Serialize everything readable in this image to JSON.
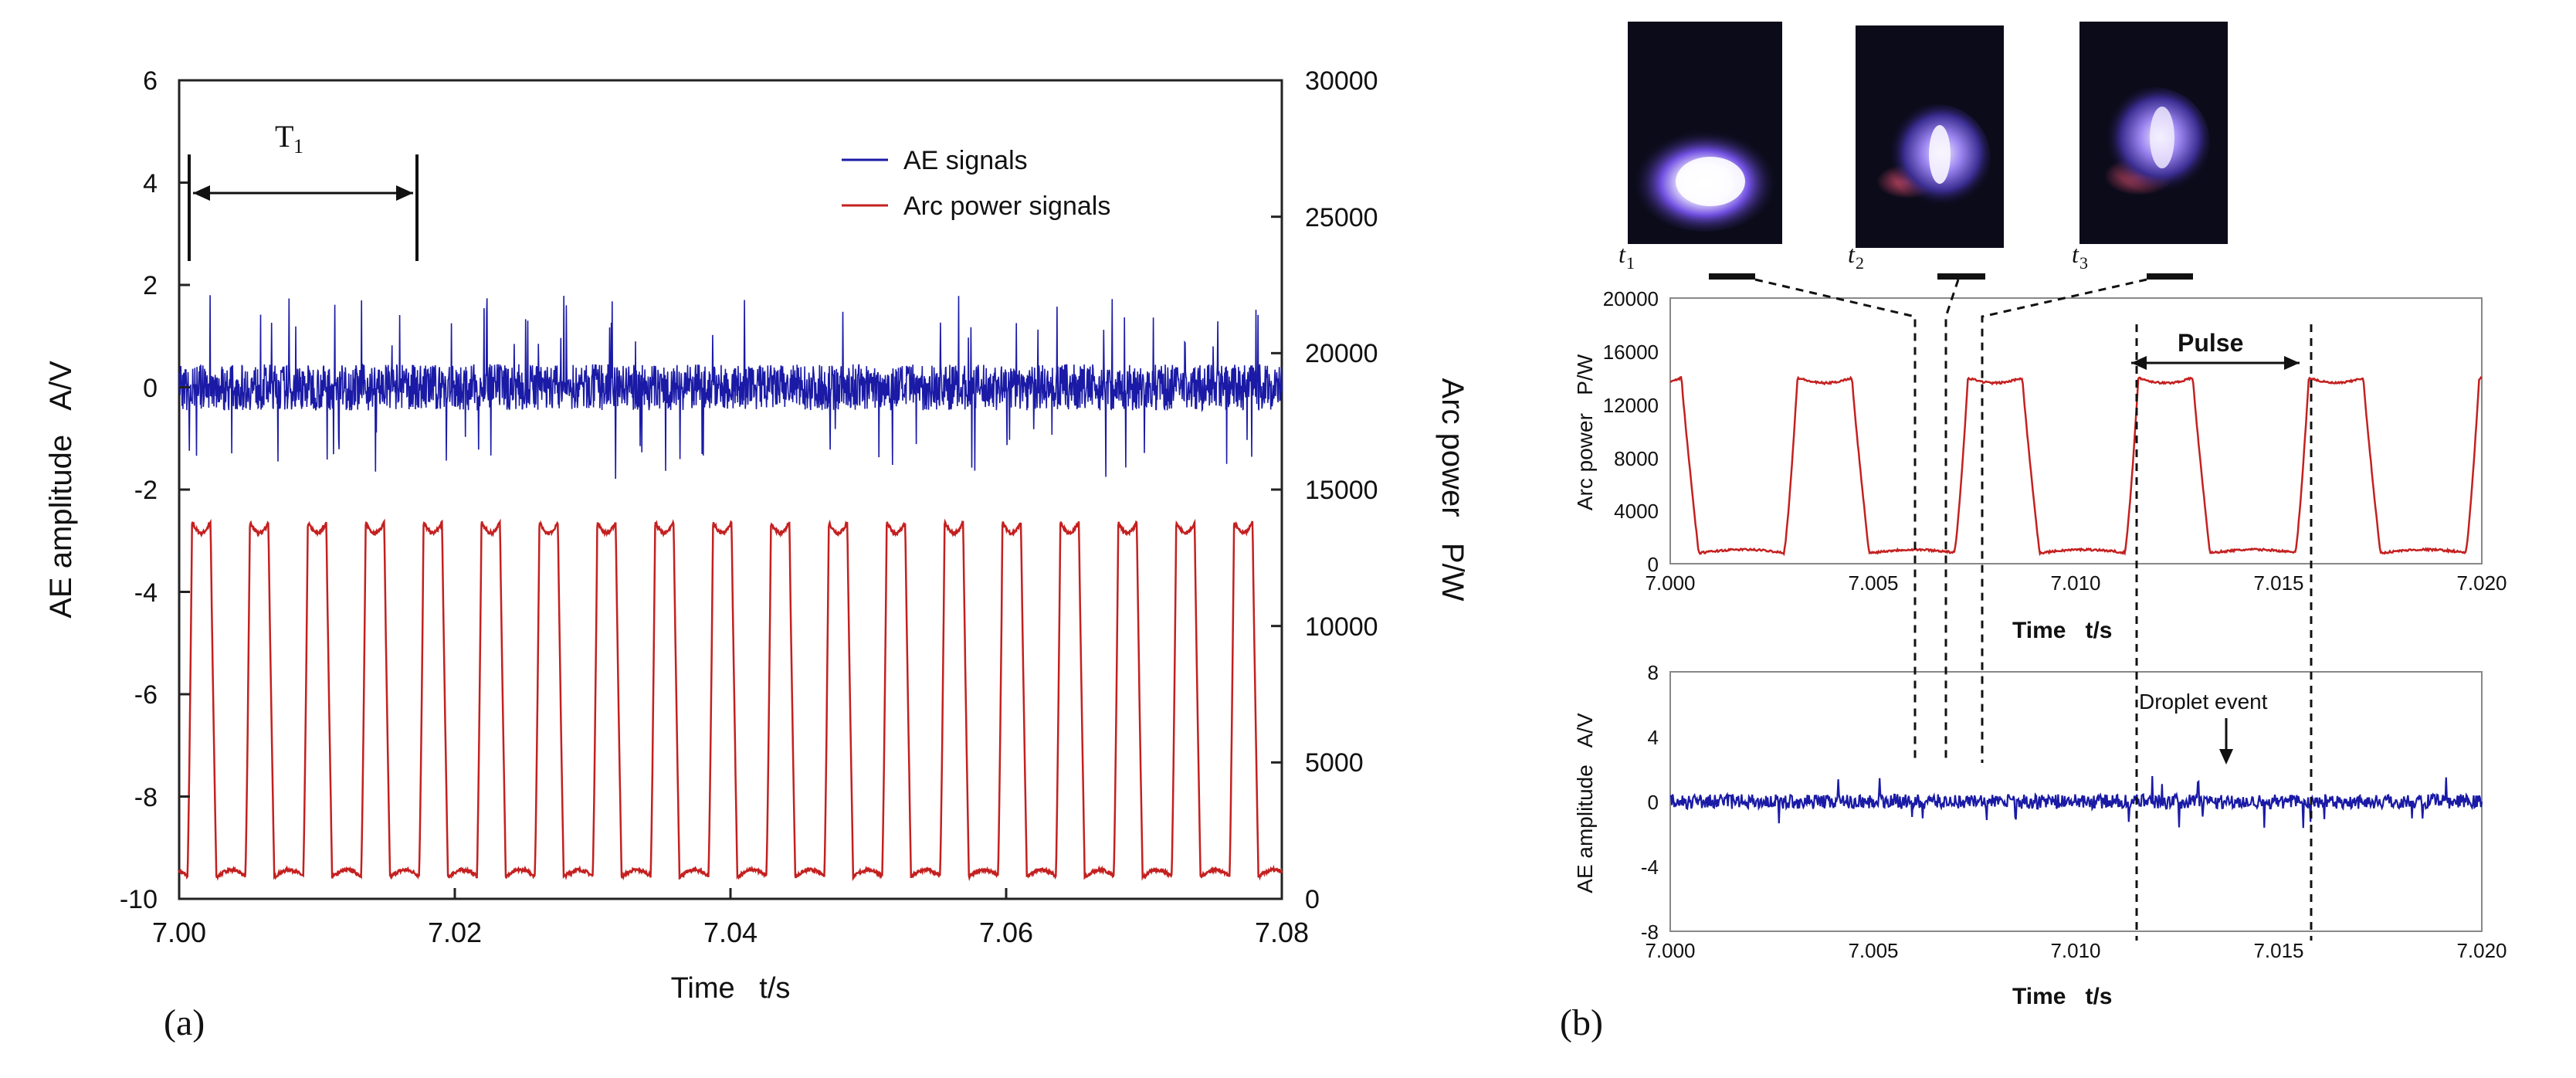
{
  "panel_a": {
    "panel_label": "(a)",
    "period_label": "T",
    "period_sub": "1",
    "chart_data": {
      "type": "line",
      "xlabel": "Time   t/s",
      "ylabel_left": "AE amplitude   A/V",
      "ylabel_right": "Arc power   P/W",
      "xlim": [
        7.0,
        7.08
      ],
      "ylim_left": [
        -10,
        6
      ],
      "ylim_right": [
        0,
        30000
      ],
      "x_ticks": [
        "7.00",
        "7.02",
        "7.04",
        "7.06",
        "7.08"
      ],
      "y_left_ticks": [
        "6",
        "4",
        "2",
        "0",
        "-2",
        "-4",
        "-6",
        "-8",
        "-10"
      ],
      "y_right_ticks": [
        "30000",
        "25000",
        "20000",
        "15000",
        "10000",
        "5000",
        "0"
      ],
      "legend_position": "top-right",
      "series": [
        {
          "name": "AE signals",
          "color": "#1a1aa6",
          "axis": "left",
          "description_values": {
            "baseline": 0,
            "noise_band": [
              -0.5,
              0.5
            ],
            "spike_max": 1.7,
            "spike_min": -1.9
          }
        },
        {
          "name": "Arc power signals",
          "color": "#c42020",
          "axis": "right",
          "pulse_period_s": 0.0042,
          "high": 13800,
          "low": 800
        }
      ],
      "annotations": [
        {
          "type": "period-marker",
          "label": "T1",
          "x_start": 7.0015,
          "x_end": 7.018,
          "y": 4
        }
      ]
    }
  },
  "panel_b": {
    "panel_label": "(b)",
    "photo_labels": [
      "t1",
      "t2",
      "t3"
    ],
    "photo_label_base": "t",
    "photo_subs": [
      "1",
      "2",
      "3"
    ],
    "pulse_label": "Pulse",
    "droplet_label": "Droplet event",
    "chart_data": [
      {
        "type": "line",
        "xlabel": "Time   t/s",
        "ylabel": "Arc power   P/W",
        "xlim": [
          7.0,
          7.02
        ],
        "ylim": [
          0,
          20000
        ],
        "x_ticks": [
          "7.000",
          "7.005",
          "7.010",
          "7.015",
          "7.020"
        ],
        "y_ticks": [
          "20000",
          "16000",
          "12000",
          "8000",
          "4000",
          "0"
        ],
        "series": [
          {
            "color": "#c42020",
            "pulse_period_s": 0.0042,
            "high": 14000,
            "low": 800
          }
        ],
        "markers": {
          "pulse_start": 7.0115,
          "pulse_end": 7.016,
          "photo_lines": [
            7.0064,
            7.0071,
            7.0081
          ]
        }
      },
      {
        "type": "line",
        "xlabel": "Time   t/s",
        "ylabel": "AE amplitude   A/V",
        "xlim": [
          7.0,
          7.02
        ],
        "ylim": [
          -8,
          8
        ],
        "x_ticks": [
          "7.000",
          "7.005",
          "7.010",
          "7.015",
          "7.020"
        ],
        "y_ticks": [
          "8",
          "4",
          "0",
          "-4",
          "-8"
        ],
        "series": [
          {
            "color": "#1a1aa6",
            "baseline": 0,
            "noise_band": [
              -0.5,
              0.6
            ]
          }
        ],
        "annotations": [
          {
            "label": "Droplet event",
            "x": 7.0137
          }
        ]
      }
    ]
  }
}
